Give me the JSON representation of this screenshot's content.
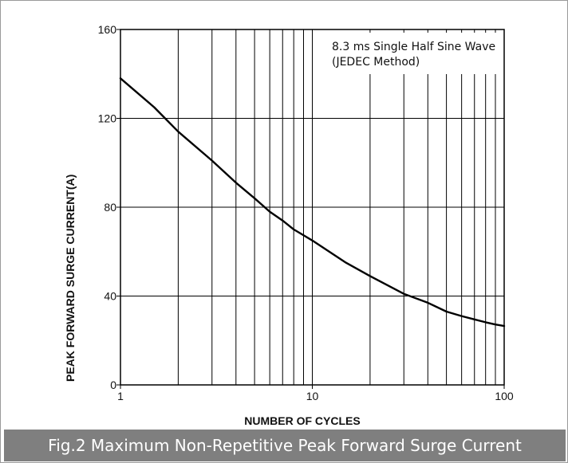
{
  "caption": "Fig.2 Maximum Non-Repetitive Peak Forward Surge Current",
  "chart_data": {
    "type": "line",
    "title": "",
    "xlabel": "NUMBER OF CYCLES",
    "ylabel": "PEAK FORWARD SURGE CURRENT(A)",
    "x_scale": "log",
    "xlim": [
      1,
      100
    ],
    "ylim": [
      0,
      160
    ],
    "x_ticks": [
      1,
      10,
      100
    ],
    "y_ticks": [
      0,
      40,
      80,
      120,
      160
    ],
    "grid": true,
    "annotation": [
      "8.3 ms Single Half Sine Wave",
      "(JEDEC Method)"
    ],
    "series": [
      {
        "x": [
          1,
          1.5,
          2,
          3,
          4,
          5,
          6,
          7,
          8,
          10,
          15,
          20,
          30,
          40,
          50,
          60,
          70,
          80,
          90,
          100
        ],
        "y": [
          138,
          125,
          114,
          101,
          91,
          84,
          78,
          74,
          70,
          65,
          55,
          49,
          41,
          37,
          33,
          31,
          29.5,
          28.2,
          27.2,
          26.5
        ]
      }
    ]
  }
}
